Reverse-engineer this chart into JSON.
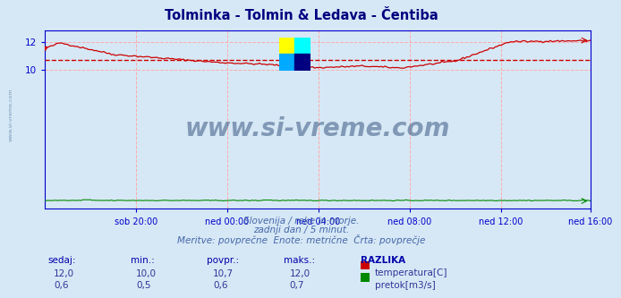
{
  "title": "Tolminka - Tolmin & Ledava - Čentiba",
  "title_color": "#000080",
  "background_color": "#d6e8f5",
  "plot_bg_color": "#d6e8f5",
  "grid_color": "#ffaaaa",
  "axis_color": "#0000cc",
  "text_color": "#4444aa",
  "xlabel_ticks": [
    "sob 20:00",
    "ned 00:00",
    "ned 04:00",
    "ned 08:00",
    "ned 12:00",
    "ned 16:00"
  ],
  "yticks": [
    10,
    12
  ],
  "ylim": [
    0,
    12.8
  ],
  "xlim": [
    0,
    287
  ],
  "avg_line_value": 10.7,
  "avg_line_color": "#cc0000",
  "temp_color": "#cc0000",
  "flow_color": "#008800",
  "height_color": "#8888ff",
  "watermark_text": "www.si-vreme.com",
  "watermark_color": "#1a3a6a",
  "sub_text1": "Slovenija / reke in morje.",
  "sub_text2": "zadnji dan / 5 minut.",
  "sub_text3": "Meritve: povprečne  Enote: metrične  Črta: povprečje",
  "footer_color": "#4466aa",
  "label_sedaj": "sedaj:",
  "label_min": "min.:",
  "label_povpr": "povpr.:",
  "label_maks": "maks.:",
  "label_razlika": "RAZLIKA",
  "temp_sedaj": "12,0",
  "temp_min": "10,0",
  "temp_povpr": "10,7",
  "temp_maks": "12,0",
  "flow_sedaj": "0,6",
  "flow_min": "0,5",
  "flow_povpr": "0,6",
  "flow_maks": "0,7",
  "temp_label": "temperatura[C]",
  "flow_label": "pretok[m3/s]",
  "tick_positions": [
    48,
    96,
    144,
    192,
    240,
    287
  ]
}
